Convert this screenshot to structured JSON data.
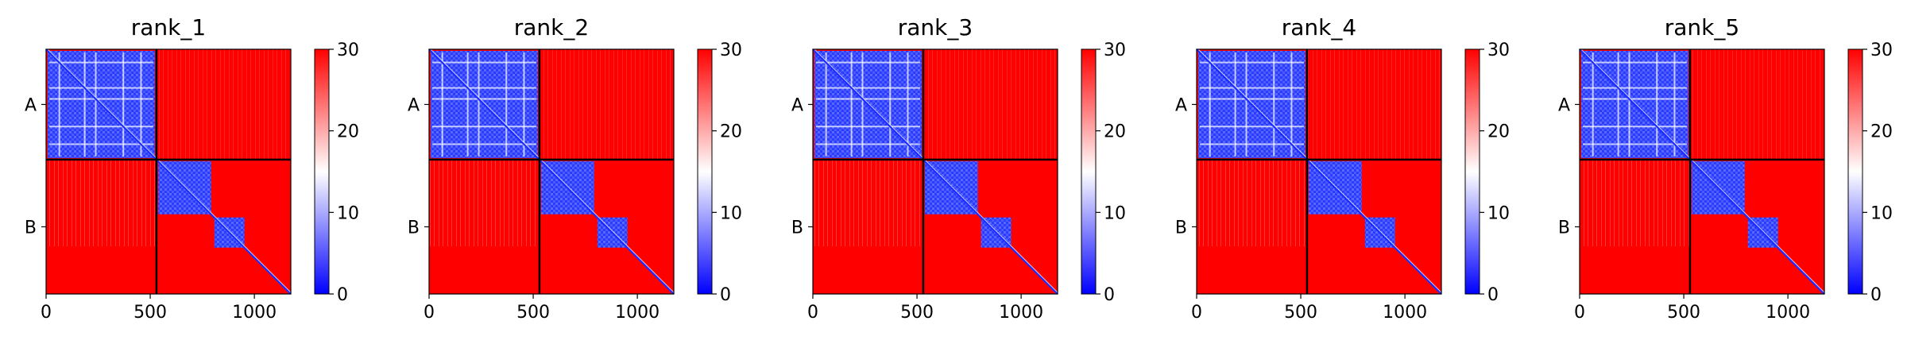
{
  "chart_data": [
    {
      "type": "heatmap",
      "title": "rank_1",
      "chains": [
        "A",
        "B"
      ],
      "chain_boundary": 530,
      "matrix_size": 1175,
      "xticks": [
        0,
        500,
        1000
      ],
      "colorbar": {
        "min": 0,
        "max": 30,
        "ticks": [
          0,
          10,
          20,
          30
        ],
        "colormap": "bwr"
      },
      "low_pae_blocks": [
        [
          0,
          530
        ],
        [
          530,
          800
        ],
        [
          800,
          960
        ]
      ],
      "inter_chain_level": "high (~30)"
    },
    {
      "type": "heatmap",
      "title": "rank_2",
      "chains": [
        "A",
        "B"
      ],
      "chain_boundary": 530,
      "matrix_size": 1175,
      "xticks": [
        0,
        500,
        1000
      ],
      "colorbar": {
        "min": 0,
        "max": 30,
        "ticks": [
          0,
          10,
          20,
          30
        ],
        "colormap": "bwr"
      },
      "low_pae_blocks": [
        [
          0,
          530
        ],
        [
          530,
          800
        ],
        [
          800,
          960
        ]
      ],
      "inter_chain_level": "high (~30)"
    },
    {
      "type": "heatmap",
      "title": "rank_3",
      "chains": [
        "A",
        "B"
      ],
      "chain_boundary": 530,
      "matrix_size": 1175,
      "xticks": [
        0,
        500,
        1000
      ],
      "colorbar": {
        "min": 0,
        "max": 30,
        "ticks": [
          0,
          10,
          20,
          30
        ],
        "colormap": "bwr"
      },
      "low_pae_blocks": [
        [
          0,
          530
        ],
        [
          530,
          800
        ],
        [
          800,
          960
        ]
      ],
      "inter_chain_level": "high (~30)"
    },
    {
      "type": "heatmap",
      "title": "rank_4",
      "chains": [
        "A",
        "B"
      ],
      "chain_boundary": 530,
      "matrix_size": 1175,
      "xticks": [
        0,
        500,
        1000
      ],
      "colorbar": {
        "min": 0,
        "max": 30,
        "ticks": [
          0,
          10,
          20,
          30
        ],
        "colormap": "bwr"
      },
      "low_pae_blocks": [
        [
          0,
          530
        ],
        [
          530,
          800
        ],
        [
          800,
          960
        ]
      ],
      "inter_chain_level": "high (~30)"
    },
    {
      "type": "heatmap",
      "title": "rank_5",
      "chains": [
        "A",
        "B"
      ],
      "chain_boundary": 530,
      "matrix_size": 1175,
      "xticks": [
        0,
        500,
        1000
      ],
      "colorbar": {
        "min": 0,
        "max": 30,
        "ticks": [
          0,
          10,
          20,
          30
        ],
        "colormap": "bwr"
      },
      "low_pae_blocks": [
        [
          0,
          530
        ],
        [
          530,
          800
        ],
        [
          800,
          960
        ]
      ],
      "inter_chain_level": "high (~30)"
    }
  ]
}
